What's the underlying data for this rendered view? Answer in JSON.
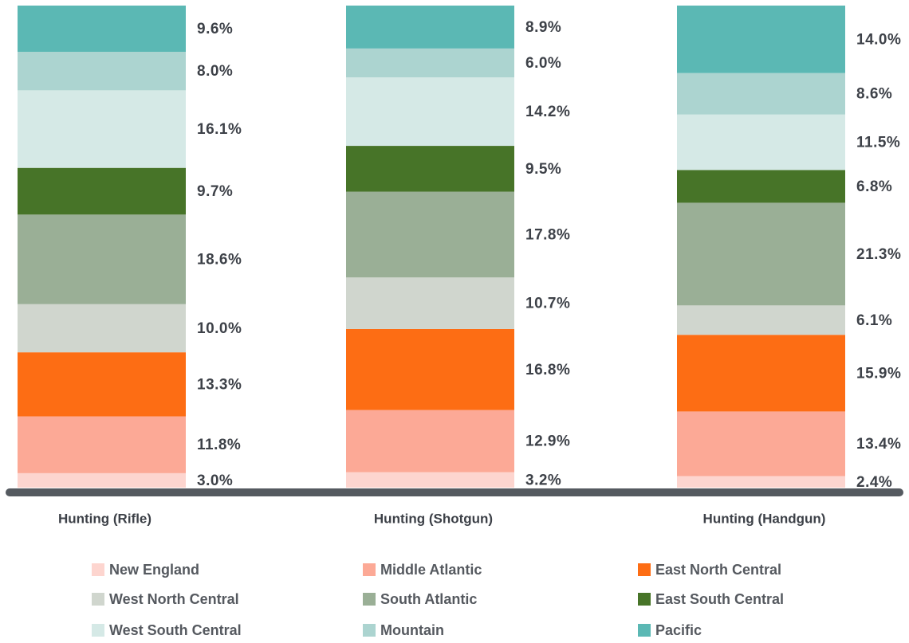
{
  "chart_data": {
    "type": "stacked_bar",
    "categories": [
      "Hunting (Rifle)",
      "Hunting (Shotgun)",
      "Hunting (Handgun)"
    ],
    "series": [
      {
        "name": "New England",
        "color": "#fdd5cf",
        "values": [
          3.0,
          3.2,
          2.4
        ],
        "value_labels": [
          "3.0%",
          "3.2%",
          "2.4%"
        ]
      },
      {
        "name": "Middle Atlantic",
        "color": "#fca996",
        "values": [
          11.8,
          12.9,
          13.4
        ],
        "value_labels": [
          "11.8%",
          "12.9%",
          "13.4%"
        ]
      },
      {
        "name": "East North Central",
        "color": "#fd6d14",
        "values": [
          13.3,
          16.8,
          15.9
        ],
        "value_labels": [
          "13.3%",
          "16.8%",
          "15.9%"
        ]
      },
      {
        "name": "West North Central",
        "color": "#d0d6ce",
        "values": [
          10.0,
          10.7,
          6.1
        ],
        "value_labels": [
          "10.0%",
          "10.7%",
          "6.1%"
        ]
      },
      {
        "name": "South Atlantic",
        "color": "#9aaf96",
        "values": [
          18.6,
          17.8,
          21.3
        ],
        "value_labels": [
          "18.6%",
          "17.8%",
          "21.3%"
        ]
      },
      {
        "name": "East South Central",
        "color": "#477428",
        "values": [
          9.7,
          9.5,
          6.8
        ],
        "value_labels": [
          "9.7%",
          "9.5%",
          "6.8%"
        ]
      },
      {
        "name": "West South Central",
        "color": "#d5e9e6",
        "values": [
          16.1,
          14.2,
          11.5
        ],
        "value_labels": [
          "16.1%",
          "14.2%",
          "11.5%"
        ]
      },
      {
        "name": "Mountain",
        "color": "#acd4d0",
        "values": [
          8.0,
          6.0,
          8.6
        ],
        "value_labels": [
          "8.0%",
          "6.0%",
          "8.6%"
        ]
      },
      {
        "name": "Pacific",
        "color": "#5bb8b4",
        "values": [
          9.6,
          8.9,
          14.0
        ],
        "value_labels": [
          "9.6%",
          "8.9%",
          "14.0%"
        ]
      }
    ]
  }
}
